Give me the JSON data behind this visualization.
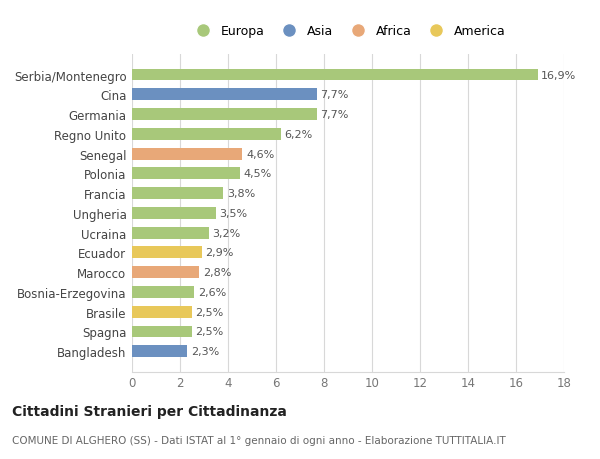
{
  "title": "Cittadini Stranieri per Cittadinanza",
  "subtitle": "COMUNE DI ALGHERO (SS) - Dati ISTAT al 1° gennaio di ogni anno - Elaborazione TUTTITALIA.IT",
  "categories": [
    "Serbia/Montenegro",
    "Cina",
    "Germania",
    "Regno Unito",
    "Senegal",
    "Polonia",
    "Francia",
    "Ungheria",
    "Ucraina",
    "Ecuador",
    "Marocco",
    "Bosnia-Erzegovina",
    "Brasile",
    "Spagna",
    "Bangladesh"
  ],
  "values": [
    16.9,
    7.7,
    7.7,
    6.2,
    4.6,
    4.5,
    3.8,
    3.5,
    3.2,
    2.9,
    2.8,
    2.6,
    2.5,
    2.5,
    2.3
  ],
  "continents": [
    "Europa",
    "Asia",
    "Europa",
    "Europa",
    "Africa",
    "Europa",
    "Europa",
    "Europa",
    "Europa",
    "America",
    "Africa",
    "Europa",
    "America",
    "Europa",
    "Asia"
  ],
  "colors": {
    "Europa": "#a8c87a",
    "Asia": "#6b90c0",
    "Africa": "#e8a878",
    "America": "#e8c85a"
  },
  "legend_order": [
    "Europa",
    "Asia",
    "Africa",
    "America"
  ],
  "xlim": [
    0,
    18
  ],
  "xticks": [
    0,
    2,
    4,
    6,
    8,
    10,
    12,
    14,
    16,
    18
  ],
  "bg_color": "#ffffff",
  "grid_color": "#d8d8d8",
  "bar_height": 0.6
}
